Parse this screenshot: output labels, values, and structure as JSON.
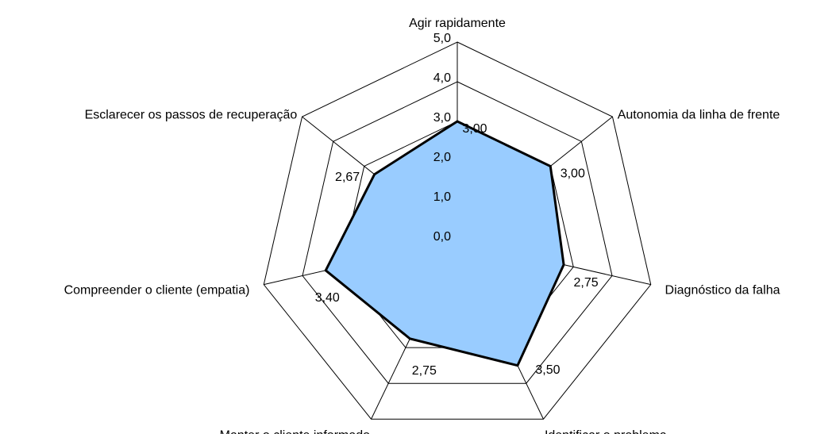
{
  "chart_data": {
    "type": "radar",
    "categories": [
      "Agir rapidamente",
      "Autonomia da linha de frente",
      "Diagnóstico da falha",
      "Identificar o problema",
      "Manter o cliente informado",
      "Compreender o cliente (empatia)",
      "Esclarecer os passos de recuperação"
    ],
    "values": [
      3.0,
      3.0,
      2.75,
      3.5,
      2.75,
      3.4,
      2.67
    ],
    "value_labels": [
      "3,00",
      "3,00",
      "2,75",
      "3,50",
      "2,75",
      "3,40",
      "2,67"
    ],
    "color": "#99ccff",
    "ylim": [
      0,
      5
    ],
    "yticks": [
      {
        "value": 0,
        "label": "0,0"
      },
      {
        "value": 1,
        "label": "1,0"
      },
      {
        "value": 2,
        "label": "2,0"
      },
      {
        "value": 3,
        "label": "3,0"
      },
      {
        "value": 4,
        "label": "4,0"
      },
      {
        "value": 5,
        "label": "5,0"
      }
    ],
    "grid": true
  }
}
